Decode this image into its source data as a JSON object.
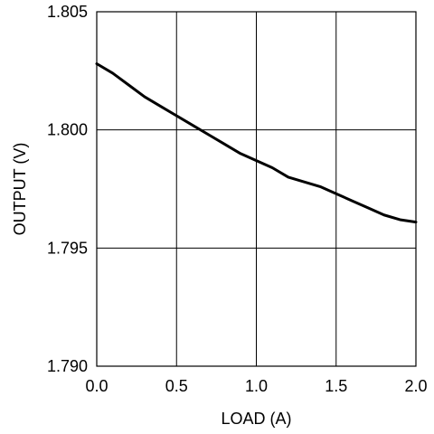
{
  "chart_data": {
    "type": "line",
    "title": "",
    "xlabel": "LOAD (A)",
    "ylabel": "OUTPUT (V)",
    "xlim": [
      0.0,
      2.0
    ],
    "ylim": [
      1.79,
      1.805
    ],
    "x_ticks": [
      "0.0",
      "0.5",
      "1.0",
      "1.5",
      "2.0"
    ],
    "y_ticks": [
      "1.790",
      "1.795",
      "1.800",
      "1.805"
    ],
    "grid": true,
    "legend": "none",
    "series": [
      {
        "color": "#000000",
        "x": [
          0.0,
          0.1,
          0.2,
          0.3,
          0.4,
          0.5,
          0.6,
          0.7,
          0.8,
          0.9,
          1.0,
          1.1,
          1.2,
          1.3,
          1.4,
          1.5,
          1.6,
          1.7,
          1.8,
          1.9,
          2.0
        ],
        "y": [
          1.8028,
          1.8024,
          1.8019,
          1.8014,
          1.801,
          1.8006,
          1.8002,
          1.7998,
          1.7994,
          1.799,
          1.7987,
          1.7984,
          1.798,
          1.7978,
          1.7976,
          1.7973,
          1.797,
          1.7967,
          1.7964,
          1.7962,
          1.7961
        ]
      }
    ]
  }
}
